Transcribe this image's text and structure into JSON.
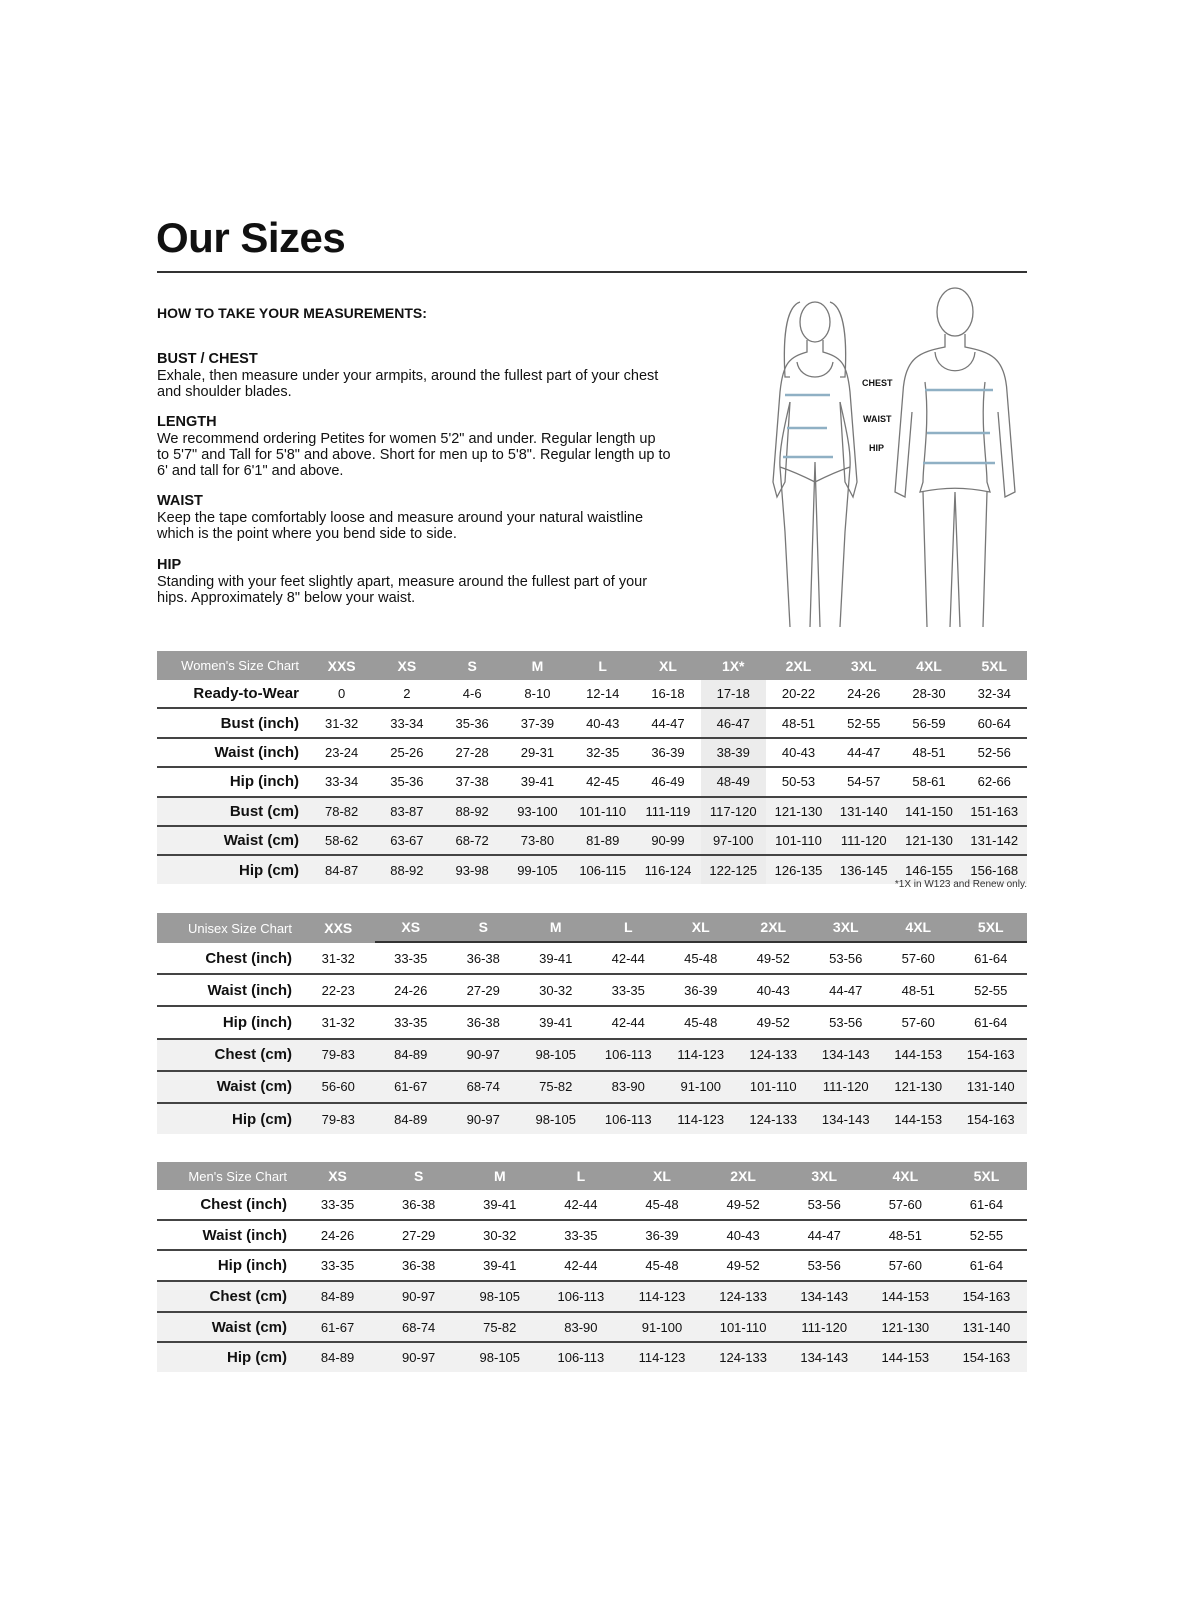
{
  "title": "Our Sizes",
  "howto": "HOW TO TAKE YOUR MEASUREMENTS:",
  "sections": [
    {
      "heading": "BUST / CHEST",
      "lines": [
        "Exhale, then measure under your armpits, around the fullest part of your chest",
        "and shoulder blades."
      ]
    },
    {
      "heading": "LENGTH",
      "lines": [
        "We recommend ordering Petites for women 5'2\" and under. Regular length up",
        "to 5'7\" and Tall for 5'8\" and above. Short for men up to 5'8\". Regular length up to",
        "6' and tall for 6'1\" and above."
      ]
    },
    {
      "heading": "WAIST",
      "lines": [
        "Keep the tape comfortably loose and measure around your natural waistline",
        "which is the point where you bend side to side."
      ]
    },
    {
      "heading": "HIP",
      "lines": [
        "Standing with your feet slightly apart, measure around the fullest part of your",
        "hips. Approximately 8\" below your waist."
      ]
    }
  ],
  "figure_labels": {
    "chest": "CHEST",
    "waist": "WAIST",
    "hip": "HIP"
  },
  "colors": {
    "header_bg": "#9b9b9b",
    "measure_line": "#8fb0c4",
    "row_alt": "#f1f1f1"
  },
  "tables": [
    {
      "title": "Women's Size Chart",
      "sizes": [
        "XXS",
        "XS",
        "S",
        "M",
        "L",
        "XL",
        "1X*",
        "2XL",
        "3XL",
        "4XL",
        "5XL"
      ],
      "highlight_column": "1X*",
      "rows": [
        {
          "label": "Ready-to-Wear",
          "values": [
            "0",
            "2",
            "4-6",
            "8-10",
            "12-14",
            "16-18",
            "17-18",
            "20-22",
            "24-26",
            "28-30",
            "32-34"
          ]
        },
        {
          "label": "Bust (inch)",
          "values": [
            "31-32",
            "33-34",
            "35-36",
            "37-39",
            "40-43",
            "44-47",
            "46-47",
            "48-51",
            "52-55",
            "56-59",
            "60-64"
          ]
        },
        {
          "label": "Waist (inch)",
          "values": [
            "23-24",
            "25-26",
            "27-28",
            "29-31",
            "32-35",
            "36-39",
            "38-39",
            "40-43",
            "44-47",
            "48-51",
            "52-56"
          ]
        },
        {
          "label": "Hip (inch)",
          "values": [
            "33-34",
            "35-36",
            "37-38",
            "39-41",
            "42-45",
            "46-49",
            "48-49",
            "50-53",
            "54-57",
            "58-61",
            "62-66"
          ]
        },
        {
          "label": "Bust (cm)",
          "values": [
            "78-82",
            "83-87",
            "88-92",
            "93-100",
            "101-110",
            "111-119",
            "117-120",
            "121-130",
            "131-140",
            "141-150",
            "151-163"
          ]
        },
        {
          "label": "Waist (cm)",
          "values": [
            "58-62",
            "63-67",
            "68-72",
            "73-80",
            "81-89",
            "90-99",
            "97-100",
            "101-110",
            "111-120",
            "121-130",
            "131-142"
          ]
        },
        {
          "label": "Hip (cm)",
          "values": [
            "84-87",
            "88-92",
            "93-98",
            "99-105",
            "106-115",
            "116-124",
            "122-125",
            "126-135",
            "136-145",
            "146-155",
            "156-168"
          ]
        }
      ],
      "footnote": "*1X in W123 and Renew only."
    },
    {
      "title": "Unisex Size Chart",
      "sizes": [
        "XXS",
        "XS",
        "S",
        "M",
        "L",
        "XL",
        "2XL",
        "3XL",
        "4XL",
        "5XL"
      ],
      "rows": [
        {
          "label": "Chest (inch)",
          "values": [
            "31-32",
            "33-35",
            "36-38",
            "39-41",
            "42-44",
            "45-48",
            "49-52",
            "53-56",
            "57-60",
            "61-64"
          ]
        },
        {
          "label": "Waist (inch)",
          "values": [
            "22-23",
            "24-26",
            "27-29",
            "30-32",
            "33-35",
            "36-39",
            "40-43",
            "44-47",
            "48-51",
            "52-55"
          ]
        },
        {
          "label": "Hip (inch)",
          "values": [
            "31-32",
            "33-35",
            "36-38",
            "39-41",
            "42-44",
            "45-48",
            "49-52",
            "53-56",
            "57-60",
            "61-64"
          ]
        },
        {
          "label": "Chest (cm)",
          "values": [
            "79-83",
            "84-89",
            "90-97",
            "98-105",
            "106-113",
            "114-123",
            "124-133",
            "134-143",
            "144-153",
            "154-163"
          ]
        },
        {
          "label": "Waist (cm)",
          "values": [
            "56-60",
            "61-67",
            "68-74",
            "75-82",
            "83-90",
            "91-100",
            "101-110",
            "111-120",
            "121-130",
            "131-140"
          ]
        },
        {
          "label": "Hip (cm)",
          "values": [
            "79-83",
            "84-89",
            "90-97",
            "98-105",
            "106-113",
            "114-123",
            "124-133",
            "134-143",
            "144-153",
            "154-163"
          ]
        }
      ]
    },
    {
      "title": "Men's Size Chart",
      "sizes": [
        "XS",
        "S",
        "M",
        "L",
        "XL",
        "2XL",
        "3XL",
        "4XL",
        "5XL"
      ],
      "rows": [
        {
          "label": "Chest (inch)",
          "values": [
            "33-35",
            "36-38",
            "39-41",
            "42-44",
            "45-48",
            "49-52",
            "53-56",
            "57-60",
            "61-64"
          ]
        },
        {
          "label": "Waist (inch)",
          "values": [
            "24-26",
            "27-29",
            "30-32",
            "33-35",
            "36-39",
            "40-43",
            "44-47",
            "48-51",
            "52-55"
          ]
        },
        {
          "label": "Hip (inch)",
          "values": [
            "33-35",
            "36-38",
            "39-41",
            "42-44",
            "45-48",
            "49-52",
            "53-56",
            "57-60",
            "61-64"
          ]
        },
        {
          "label": "Chest (cm)",
          "values": [
            "84-89",
            "90-97",
            "98-105",
            "106-113",
            "114-123",
            "124-133",
            "134-143",
            "144-153",
            "154-163"
          ]
        },
        {
          "label": "Waist (cm)",
          "values": [
            "61-67",
            "68-74",
            "75-82",
            "83-90",
            "91-100",
            "101-110",
            "111-120",
            "121-130",
            "131-140"
          ]
        },
        {
          "label": "Hip (cm)",
          "values": [
            "84-89",
            "90-97",
            "98-105",
            "106-113",
            "114-123",
            "124-133",
            "134-143",
            "144-153",
            "154-163"
          ]
        }
      ]
    }
  ]
}
